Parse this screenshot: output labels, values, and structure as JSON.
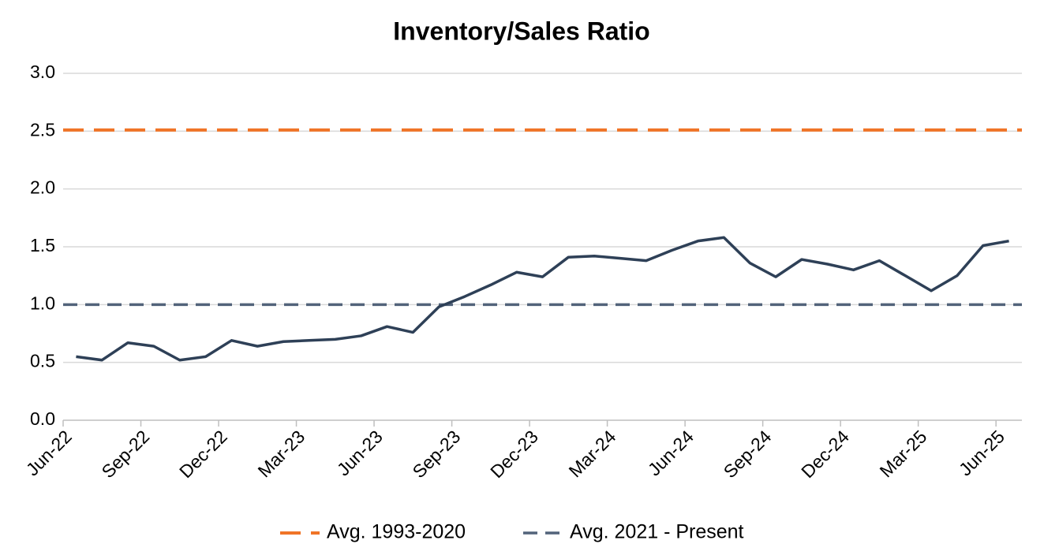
{
  "chart_data": {
    "type": "line",
    "title": "Inventory/Sales Ratio",
    "categories": [
      "Jun-22",
      null,
      null,
      "Sep-22",
      null,
      null,
      "Dec-22",
      null,
      null,
      "Mar-23",
      null,
      null,
      "Jun-23",
      null,
      null,
      "Sep-23",
      null,
      null,
      "Dec-23",
      null,
      null,
      "Mar-24",
      null,
      null,
      "Jun-24",
      null,
      null,
      "Sep-24",
      null,
      null,
      "Dec-24",
      null,
      null,
      "Mar-25",
      null,
      null,
      "Jun-25"
    ],
    "series": [
      {
        "color": "#2e4057",
        "values": [
          0.55,
          0.52,
          0.67,
          0.64,
          0.52,
          0.55,
          0.69,
          0.64,
          0.68,
          0.69,
          0.7,
          0.73,
          0.81,
          0.76,
          0.98,
          1.07,
          1.17,
          1.28,
          1.24,
          1.41,
          1.42,
          1.4,
          1.38,
          1.47,
          1.55,
          1.58,
          1.36,
          1.24,
          1.39,
          1.35,
          1.3,
          1.38,
          1.25,
          1.12,
          1.25,
          1.51,
          1.55
        ]
      }
    ],
    "reference_lines": [
      {
        "name": "Avg. 1993-2020",
        "color": "#f07427",
        "value": 2.51
      },
      {
        "name": "Avg. 2021 - Present",
        "color": "#52637a",
        "value": 1.0
      }
    ],
    "ylim": [
      0,
      3
    ],
    "yticks": [
      {
        "value": 0,
        "label": "0.0"
      },
      0.5,
      {
        "value": 1,
        "label": "1.0"
      },
      1.5,
      {
        "value": 2,
        "label": "2.0"
      },
      2.5,
      {
        "value": 3,
        "label": "3.0"
      }
    ],
    "grid": true,
    "legend": "bottom"
  }
}
